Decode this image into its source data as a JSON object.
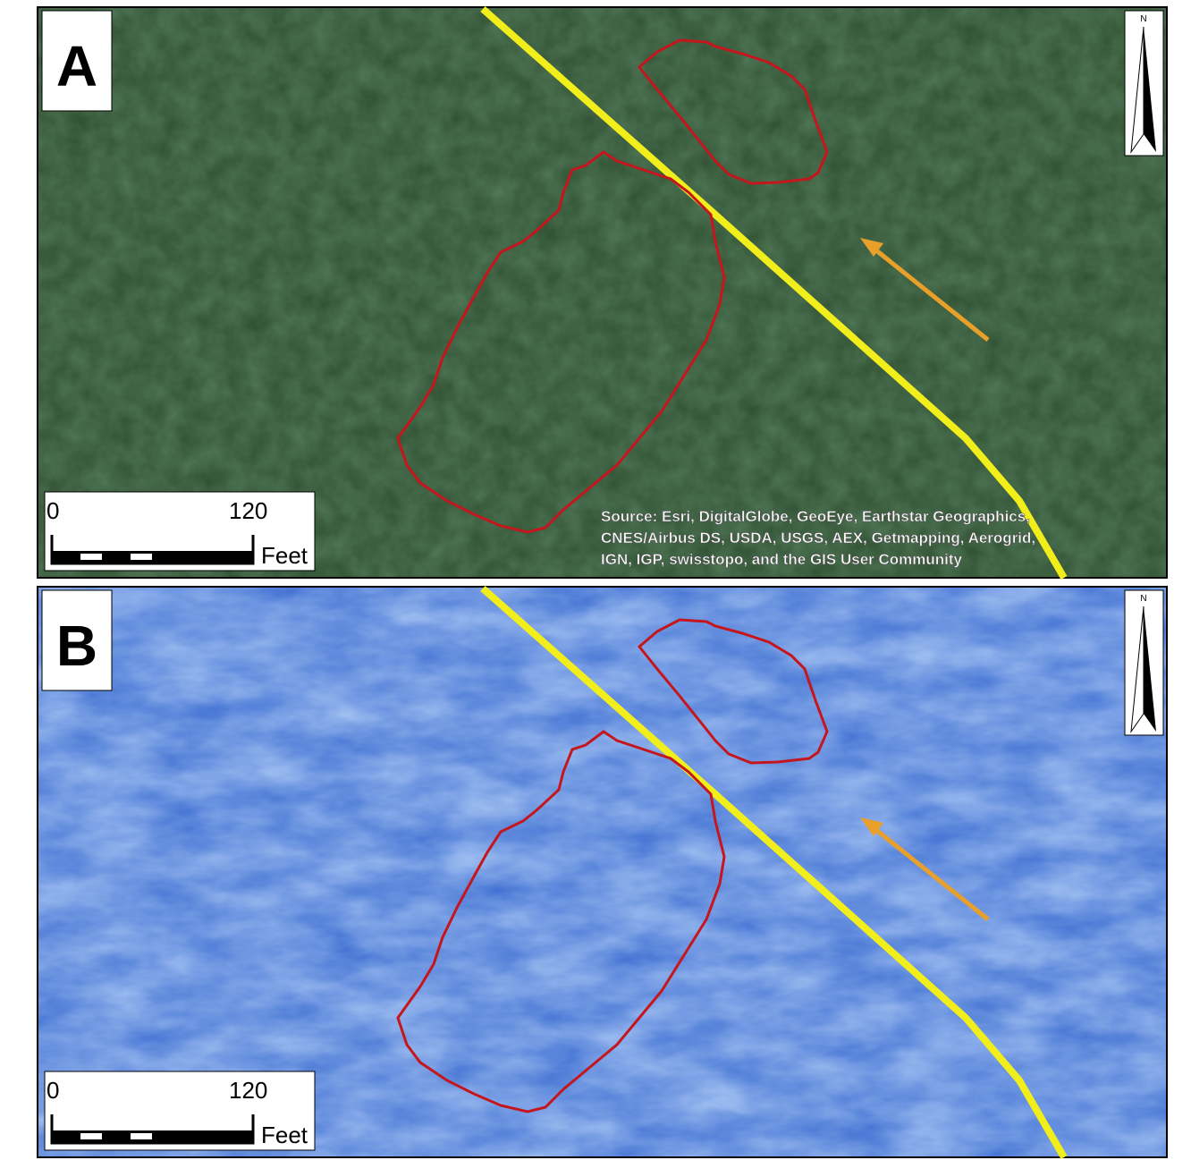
{
  "panels": [
    {
      "label": "A",
      "north": "N",
      "scale_bar": {
        "start": "0",
        "end": "120",
        "unit": "Feet"
      },
      "source": [
        "Source: Esri, DigitalGlobe, GeoEye, Earthstar Geographics,",
        "CNES/Airbus DS, USDA, USGS, AEX, Getmapping, Aerogrid,",
        "IGN, IGP, swisstopo, and the GIS User Community"
      ]
    },
    {
      "label": "B",
      "north": "N",
      "scale_bar": {
        "start": "0",
        "end": "120",
        "unit": "Feet"
      }
    }
  ]
}
